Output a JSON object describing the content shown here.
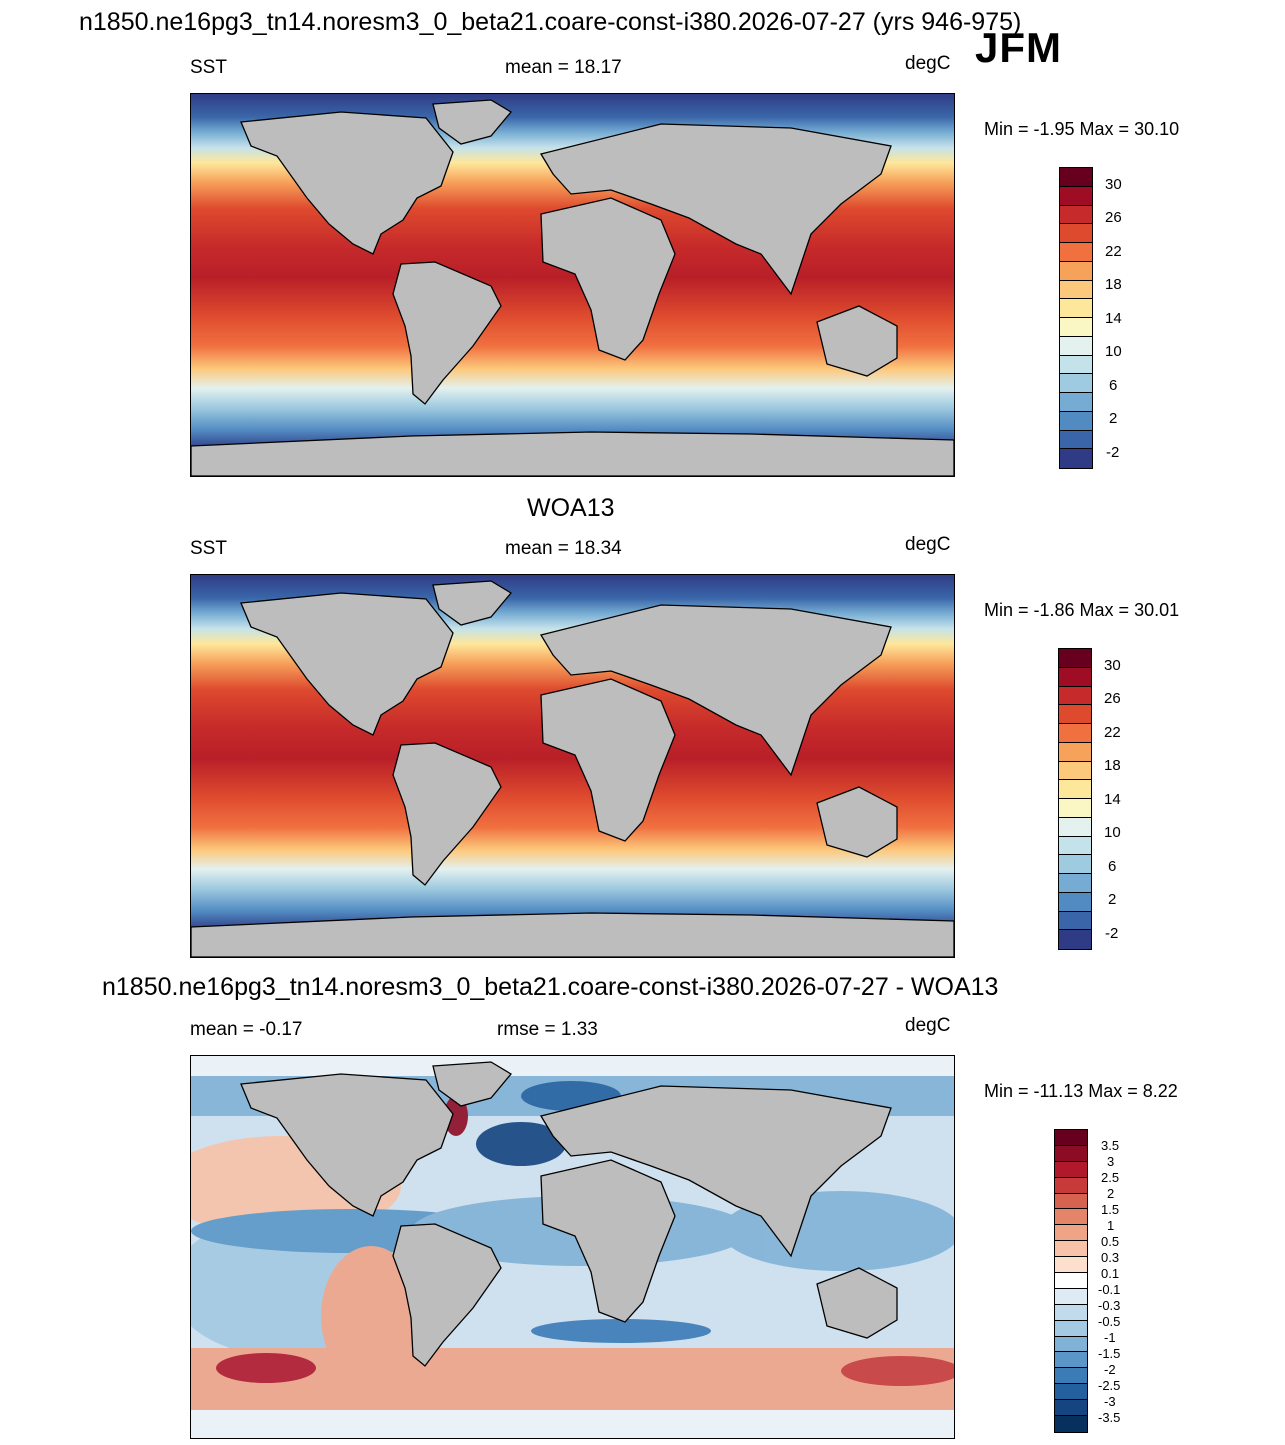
{
  "figure": {
    "main_title": "n1850.ne16pg3_tn14.noresm3_0_beta21.coare-const-i380.2026-07-27 (yrs 946-975)",
    "season": "JFM"
  },
  "panels": [
    {
      "title": "",
      "left_label": "SST",
      "center_label": "mean =  18.17",
      "units": "degC",
      "minmax": "Min =  -1.95 Max =  30.10"
    },
    {
      "title": "WOA13",
      "left_label": "SST",
      "center_label": "mean =  18.34",
      "units": "degC",
      "minmax": "Min =  -1.86 Max =  30.01"
    },
    {
      "title": "n1850.ne16pg3_tn14.noresm3_0_beta21.coare-const-i380.2026-07-27 - WOA13",
      "left_label": "mean =  -0.17",
      "center_label": "rmse =   1.33",
      "units": "degC",
      "minmax": "Min = -11.13 Max =   8.22"
    }
  ],
  "colorbars": {
    "sst": {
      "labels": [
        "30",
        "26",
        "22",
        "18",
        "14",
        "10",
        "6",
        "2",
        "-2"
      ],
      "colors": [
        "#67001f",
        "#9e0d24",
        "#c62a2a",
        "#de4a2e",
        "#f07040",
        "#f7a25b",
        "#fcc97c",
        "#fde79b",
        "#fbf7c4",
        "#e3f1ef",
        "#c4e2ea",
        "#9fcbe0",
        "#76acd3",
        "#528bc2",
        "#3a66a9",
        "#2f3c85"
      ]
    },
    "diff": {
      "labels": [
        "3.5",
        "3",
        "2.5",
        "2",
        "1.5",
        "1",
        "0.5",
        "0.3",
        "0.1",
        "-0.1",
        "-0.3",
        "-0.5",
        "-1",
        "-1.5",
        "-2",
        "-2.5",
        "-3",
        "-3.5"
      ],
      "colors": [
        "#67001f",
        "#8c0c25",
        "#b0182b",
        "#c83a3a",
        "#d7624f",
        "#e48468",
        "#f0a487",
        "#f8c3a8",
        "#fcdfcc",
        "#ffffff",
        "#ddebf4",
        "#c2dbec",
        "#a4c9e3",
        "#80b2d6",
        "#5a97c8",
        "#3b7cb7",
        "#22609f",
        "#144580",
        "#08305e"
      ]
    }
  }
}
